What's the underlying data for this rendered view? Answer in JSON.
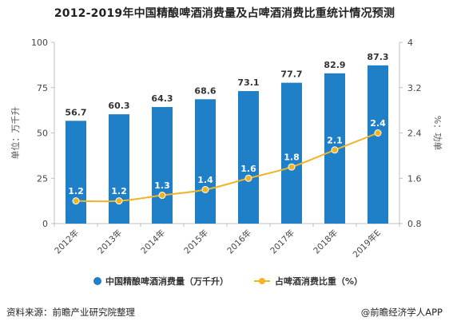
{
  "title": "2012-2019年中国精酿啤酒消费量及占啤酒消费比重统计情况预测",
  "footer": {
    "source": "资料来源：前瞻产业研究院整理",
    "brand": "@前瞻经济学人APP"
  },
  "colors": {
    "bar": "#1f7fc7",
    "line": "#f0b428",
    "axis": "#bfbfbf",
    "label_bg": "#1f7fc7"
  },
  "chart_data": {
    "type": "bar",
    "categories": [
      "2012年",
      "2013年",
      "2014年",
      "2015年",
      "2016年",
      "2017年",
      "2018年",
      "2019年E"
    ],
    "series": [
      {
        "name": "中国精酿啤酒消费量（万千升）",
        "type": "bar",
        "axis": "left",
        "values": [
          56.7,
          60.3,
          64.3,
          68.6,
          73.1,
          77.7,
          82.9,
          87.3
        ]
      },
      {
        "name": "占啤酒消费比重（%）",
        "type": "line",
        "axis": "right",
        "values": [
          1.2,
          1.2,
          1.3,
          1.4,
          1.6,
          1.8,
          2.1,
          2.4
        ]
      }
    ],
    "ylabel_left": "单位：万千升",
    "ylabel_right": "%：功单",
    "ylim_left": [
      0,
      100
    ],
    "yticks_left": [
      0,
      25,
      50,
      75,
      100
    ],
    "ylim_right": [
      0.8,
      4
    ],
    "yticks_right": [
      "0.8",
      "1.6",
      "2.4",
      "3.2",
      "4"
    ],
    "legend_position": "bottom",
    "grid": false
  }
}
